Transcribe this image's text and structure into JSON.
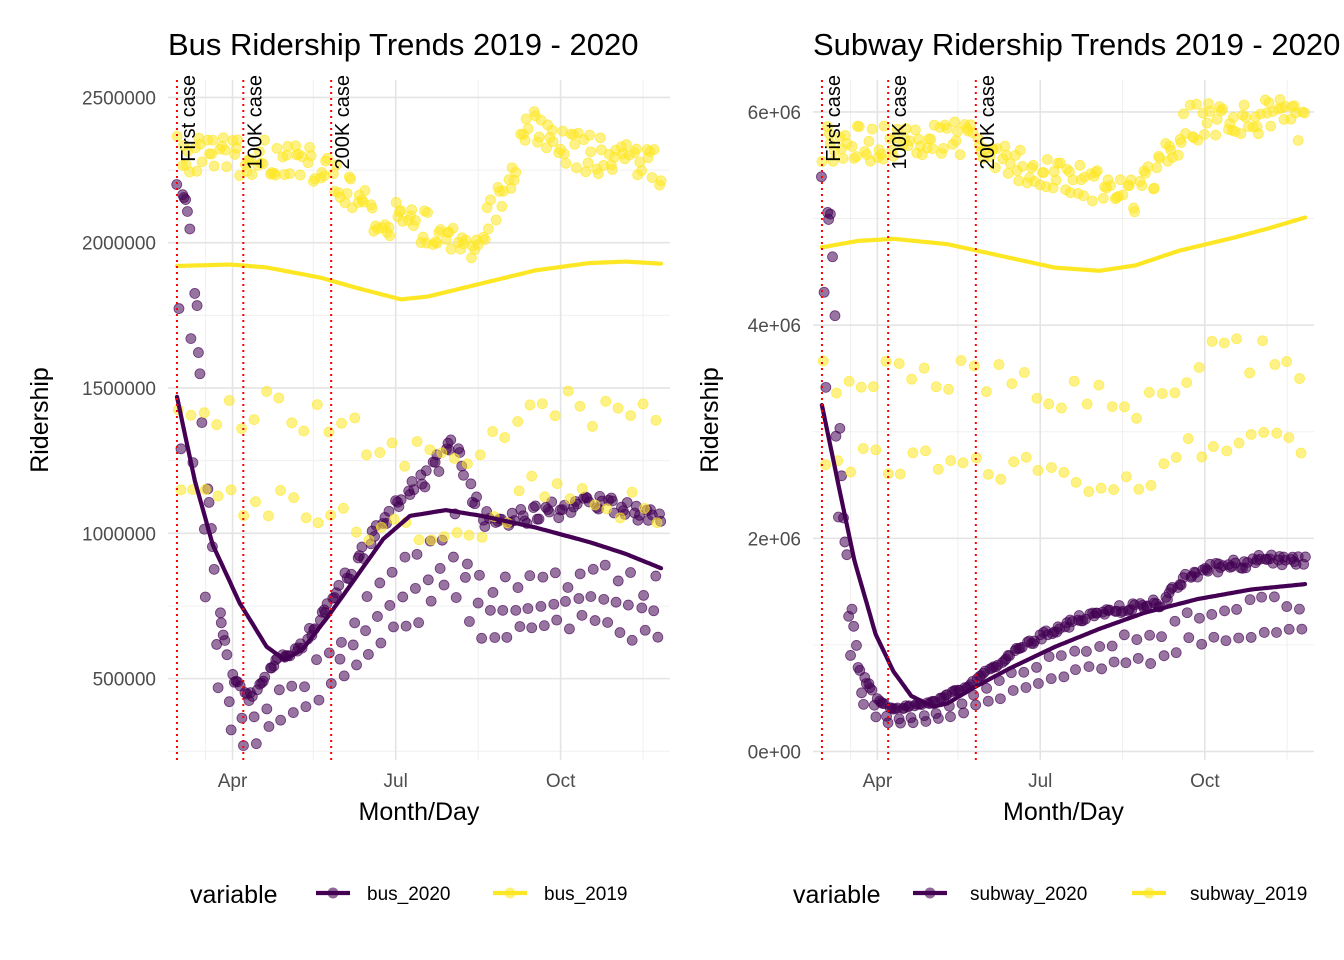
{
  "chart_data": [
    {
      "type": "scatter",
      "title": "Bus Ridership Trends 2019 - 2020",
      "xlabel": "Month/Day",
      "ylabel": "Ridership",
      "x_tick_labels": [
        "Apr",
        "Jul",
        "Oct"
      ],
      "x_tick_days": [
        91,
        182,
        274
      ],
      "xlim_days": [
        55,
        335
      ],
      "y_ticks": [
        500000,
        1000000,
        1500000,
        2000000,
        2500000
      ],
      "y_tick_labels": [
        "500000",
        "1000000",
        "1500000",
        "2000000",
        "2500000"
      ],
      "ylim": [
        220000,
        2560000
      ],
      "grid": true,
      "legend_position": "bottom",
      "legend_title": "variable",
      "annotations": [
        {
          "label": "First case",
          "day": 60
        },
        {
          "label": "100K case",
          "day": 97
        },
        {
          "label": "200K case",
          "day": 146
        }
      ],
      "series": [
        {
          "name": "bus_2020",
          "color": "#440154",
          "levels": [
            {
              "day": 60,
              "v": 2180000
            },
            {
              "day": 68,
              "v": 2070000
            },
            {
              "day": 75,
              "v": 1300000
            },
            {
              "day": 82,
              "v": 800000
            },
            {
              "day": 90,
              "v": 520000
            },
            {
              "day": 100,
              "v": 430000
            },
            {
              "day": 115,
              "v": 560000
            },
            {
              "day": 130,
              "v": 620000
            },
            {
              "day": 150,
              "v": 800000
            },
            {
              "day": 175,
              "v": 1050000
            },
            {
              "day": 200,
              "v": 1200000
            },
            {
              "day": 215,
              "v": 1320000
            },
            {
              "day": 230,
              "v": 1050000
            },
            {
              "day": 250,
              "v": 1050000
            },
            {
              "day": 270,
              "v": 1080000
            },
            {
              "day": 290,
              "v": 1120000
            },
            {
              "day": 310,
              "v": 1080000
            },
            {
              "day": 330,
              "v": 1040000
            }
          ],
          "smooth": [
            {
              "day": 60,
              "v": 1470000
            },
            {
              "day": 70,
              "v": 1180000
            },
            {
              "day": 80,
              "v": 960000
            },
            {
              "day": 95,
              "v": 760000
            },
            {
              "day": 110,
              "v": 610000
            },
            {
              "day": 120,
              "v": 565000
            },
            {
              "day": 130,
              "v": 600000
            },
            {
              "day": 145,
              "v": 720000
            },
            {
              "day": 160,
              "v": 850000
            },
            {
              "day": 175,
              "v": 980000
            },
            {
              "day": 190,
              "v": 1060000
            },
            {
              "day": 210,
              "v": 1080000
            },
            {
              "day": 230,
              "v": 1060000
            },
            {
              "day": 260,
              "v": 1020000
            },
            {
              "day": 290,
              "v": 970000
            },
            {
              "day": 310,
              "v": 930000
            },
            {
              "day": 330,
              "v": 880000
            }
          ]
        },
        {
          "name": "bus_2019",
          "color": "#fde725",
          "levels": [
            {
              "day": 60,
              "v": 2300000
            },
            {
              "day": 100,
              "v": 2300000
            },
            {
              "day": 130,
              "v": 2300000
            },
            {
              "day": 150,
              "v": 2200000
            },
            {
              "day": 170,
              "v": 2100000
            },
            {
              "day": 200,
              "v": 2050000
            },
            {
              "day": 225,
              "v": 1980000
            },
            {
              "day": 240,
              "v": 2150000
            },
            {
              "day": 255,
              "v": 2400000
            },
            {
              "day": 275,
              "v": 2320000
            },
            {
              "day": 300,
              "v": 2300000
            },
            {
              "day": 330,
              "v": 2260000
            }
          ],
          "smooth": [
            {
              "day": 60,
              "v": 1920000
            },
            {
              "day": 90,
              "v": 1925000
            },
            {
              "day": 110,
              "v": 1915000
            },
            {
              "day": 140,
              "v": 1880000
            },
            {
              "day": 160,
              "v": 1845000
            },
            {
              "day": 185,
              "v": 1805000
            },
            {
              "day": 200,
              "v": 1815000
            },
            {
              "day": 230,
              "v": 1860000
            },
            {
              "day": 260,
              "v": 1905000
            },
            {
              "day": 290,
              "v": 1930000
            },
            {
              "day": 310,
              "v": 1935000
            },
            {
              "day": 330,
              "v": 1928000
            }
          ]
        }
      ]
    },
    {
      "type": "scatter",
      "title": "Subway Ridership Trends 2019 - 2020",
      "xlabel": "Month/Day",
      "ylabel": "Ridership",
      "x_tick_labels": [
        "Apr",
        "Jul",
        "Oct"
      ],
      "x_tick_days": [
        91,
        182,
        274
      ],
      "xlim_days": [
        55,
        335
      ],
      "y_ticks": [
        0,
        2000000,
        4000000,
        6000000
      ],
      "y_tick_labels": [
        "0e+00",
        "2e+06",
        "4e+06",
        "6e+06"
      ],
      "ylim": [
        -80000,
        6300000
      ],
      "grid": true,
      "legend_position": "bottom",
      "legend_title": "variable",
      "annotations": [
        {
          "label": "First case",
          "day": 60
        },
        {
          "label": "100K case",
          "day": 97
        },
        {
          "label": "200K case",
          "day": 146
        }
      ],
      "series": [
        {
          "name": "subway_2020",
          "color": "#440154",
          "levels": [
            {
              "day": 60,
              "v": 5500000
            },
            {
              "day": 65,
              "v": 5000000
            },
            {
              "day": 72,
              "v": 2200000
            },
            {
              "day": 80,
              "v": 800000
            },
            {
              "day": 90,
              "v": 500000
            },
            {
              "day": 100,
              "v": 400000
            },
            {
              "day": 120,
              "v": 450000
            },
            {
              "day": 140,
              "v": 600000
            },
            {
              "day": 165,
              "v": 900000
            },
            {
              "day": 185,
              "v": 1100000
            },
            {
              "day": 205,
              "v": 1250000
            },
            {
              "day": 230,
              "v": 1350000
            },
            {
              "day": 250,
              "v": 1400000
            },
            {
              "day": 265,
              "v": 1650000
            },
            {
              "day": 285,
              "v": 1750000
            },
            {
              "day": 310,
              "v": 1800000
            },
            {
              "day": 330,
              "v": 1780000
            }
          ],
          "smooth": [
            {
              "day": 60,
              "v": 3250000
            },
            {
              "day": 68,
              "v": 2600000
            },
            {
              "day": 78,
              "v": 1800000
            },
            {
              "day": 90,
              "v": 1100000
            },
            {
              "day": 100,
              "v": 750000
            },
            {
              "day": 110,
              "v": 520000
            },
            {
              "day": 122,
              "v": 420000
            },
            {
              "day": 130,
              "v": 450000
            },
            {
              "day": 145,
              "v": 600000
            },
            {
              "day": 165,
              "v": 780000
            },
            {
              "day": 190,
              "v": 980000
            },
            {
              "day": 215,
              "v": 1150000
            },
            {
              "day": 240,
              "v": 1300000
            },
            {
              "day": 270,
              "v": 1430000
            },
            {
              "day": 300,
              "v": 1520000
            },
            {
              "day": 330,
              "v": 1570000
            }
          ],
          "point_range_top": 5500000
        },
        {
          "name": "subway_2019",
          "color": "#fde725",
          "levels": [
            {
              "day": 60,
              "v": 5700000
            },
            {
              "day": 100,
              "v": 5700000
            },
            {
              "day": 130,
              "v": 5750000
            },
            {
              "day": 150,
              "v": 5700000
            },
            {
              "day": 170,
              "v": 5500000
            },
            {
              "day": 195,
              "v": 5400000
            },
            {
              "day": 215,
              "v": 5300000
            },
            {
              "day": 235,
              "v": 5200000
            },
            {
              "day": 250,
              "v": 5500000
            },
            {
              "day": 265,
              "v": 5900000
            },
            {
              "day": 290,
              "v": 5950000
            },
            {
              "day": 315,
              "v": 5950000
            },
            {
              "day": 330,
              "v": 5850000
            }
          ],
          "smooth": [
            {
              "day": 60,
              "v": 4730000
            },
            {
              "day": 80,
              "v": 4790000
            },
            {
              "day": 100,
              "v": 4810000
            },
            {
              "day": 130,
              "v": 4760000
            },
            {
              "day": 160,
              "v": 4650000
            },
            {
              "day": 190,
              "v": 4540000
            },
            {
              "day": 215,
              "v": 4510000
            },
            {
              "day": 235,
              "v": 4560000
            },
            {
              "day": 260,
              "v": 4700000
            },
            {
              "day": 290,
              "v": 4820000
            },
            {
              "day": 310,
              "v": 4910000
            },
            {
              "day": 330,
              "v": 5010000
            }
          ]
        }
      ]
    }
  ]
}
